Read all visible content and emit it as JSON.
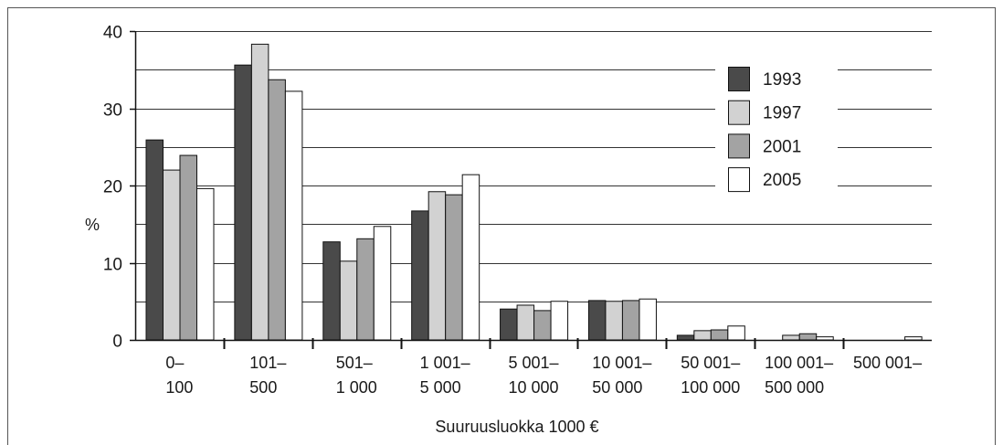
{
  "chart_data": {
    "type": "bar",
    "categories": [
      [
        "0–",
        "100"
      ],
      [
        "101–",
        "500"
      ],
      [
        "501–",
        "1 000"
      ],
      [
        "1 001–",
        "5 000"
      ],
      [
        "5 001–",
        "10 000"
      ],
      [
        "10 001–",
        "50 000"
      ],
      [
        "50 001–",
        "100 000"
      ],
      [
        "100 001–",
        "500 000"
      ],
      [
        "500 001–"
      ]
    ],
    "series": [
      {
        "name": "1993",
        "color": "#4a4a4a",
        "values": [
          25.9,
          35.6,
          12.7,
          16.7,
          4.0,
          5.1,
          0.6,
          0,
          0
        ]
      },
      {
        "name": "1997",
        "color": "#d2d2d2",
        "values": [
          22.0,
          38.3,
          10.2,
          19.2,
          4.5,
          5.0,
          1.2,
          0.6,
          0
        ]
      },
      {
        "name": "2001",
        "color": "#a3a3a3",
        "values": [
          23.9,
          33.7,
          13.1,
          18.8,
          3.8,
          5.1,
          1.3,
          0.8,
          0
        ]
      },
      {
        "name": "2005",
        "color": "#ffffff",
        "values": [
          19.6,
          32.2,
          14.7,
          21.4,
          5.0,
          5.3,
          1.8,
          0.4,
          0.4
        ]
      }
    ],
    "ylabel": "%",
    "xlabel": "Suuruusluokka 1000 €",
    "ylim": [
      0,
      40
    ],
    "yticks": [
      0,
      10,
      20,
      30,
      40
    ],
    "grid": true,
    "grid_step": 5,
    "legend": "top-right"
  }
}
